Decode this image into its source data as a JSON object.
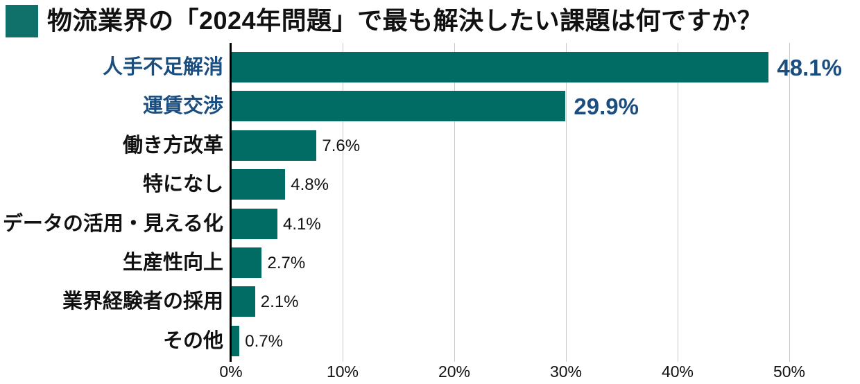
{
  "title": {
    "text": "物流業界の「2024年問題」で最も解決したい課題は何ですか？",
    "marker_icon": "teal-square-icon"
  },
  "colors": {
    "bar": "#006C64",
    "title_marker": "#10706A",
    "highlight_text": "#1B4E80",
    "normal_text": "#111111",
    "gridline": "#C9C9C9",
    "axis_line": "#000000",
    "background": "#FFFFFF"
  },
  "chart_data": {
    "type": "bar",
    "orientation": "horizontal",
    "title": "物流業界の「2024年問題」で最も解決したい課題は何ですか？",
    "categories": [
      "人手不足解消",
      "運賃交渉",
      "働き方改革",
      "特になし",
      "データの活用・見える化",
      "生産性向上",
      "業界経験者の採用",
      "その他"
    ],
    "values": [
      48.1,
      29.9,
      7.6,
      4.8,
      4.1,
      2.7,
      2.1,
      0.7
    ],
    "value_labels": [
      "48.1%",
      "29.9%",
      "7.6%",
      "4.8%",
      "4.1%",
      "2.7%",
      "2.1%",
      "0.7%"
    ],
    "highlighted": [
      true,
      true,
      false,
      false,
      false,
      false,
      false,
      false
    ],
    "highlighted_categories": [
      "人手不足解消",
      "運賃交渉"
    ],
    "xlabel": "",
    "ylabel": "",
    "xlim": [
      0,
      50
    ],
    "x_tick_labels": [
      "0%",
      "10%",
      "20%",
      "30%",
      "40%",
      "50%"
    ],
    "grid": "vertical-only",
    "legend": "none"
  }
}
